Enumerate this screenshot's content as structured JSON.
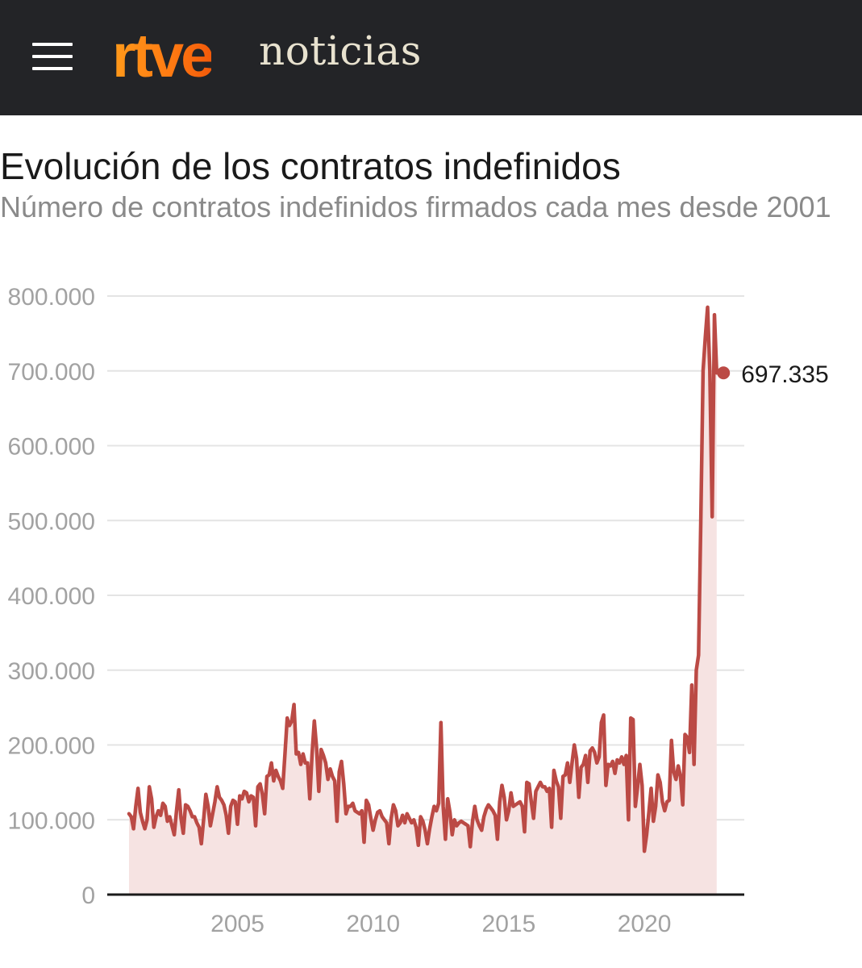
{
  "header": {
    "logo_text": "rtve",
    "section_text": "noticias"
  },
  "chart_data": {
    "type": "area",
    "title": "Evolución de los contratos indefinidos",
    "subtitle": "Número de contratos indefinidos firmados cada mes desde 2001",
    "xlabel": "",
    "ylabel": "",
    "xlim": [
      2001.0,
      2023.0
    ],
    "ylim": [
      0,
      800000
    ],
    "y_ticks": [
      0,
      100000,
      200000,
      300000,
      400000,
      500000,
      600000,
      700000,
      800000
    ],
    "y_tick_labels": [
      "0",
      "100.000",
      "200.000",
      "300.000",
      "400.000",
      "500.000",
      "600.000",
      "700.000",
      "800.000"
    ],
    "x_ticks": [
      2005,
      2010,
      2015,
      2020
    ],
    "x_tick_labels": [
      "2005",
      "2010",
      "2015",
      "2020"
    ],
    "grid": true,
    "series": [
      {
        "name": "Contratos indefinidos",
        "color": "#bb4a45",
        "fill": "#f6e3e2",
        "x_start": 2001.0,
        "x_step": 0.08333,
        "values": [
          108000,
          104000,
          88000,
          118000,
          142000,
          110000,
          98000,
          88000,
          100000,
          144000,
          128000,
          90000,
          104000,
          112000,
          106000,
          122000,
          118000,
          98000,
          104000,
          92000,
          80000,
          112000,
          140000,
          102000,
          82000,
          120000,
          118000,
          112000,
          104000,
          104000,
          96000,
          90000,
          68000,
          100000,
          134000,
          118000,
          92000,
          108000,
          124000,
          144000,
          130000,
          126000,
          120000,
          106000,
          82000,
          118000,
          126000,
          124000,
          94000,
          132000,
          128000,
          138000,
          136000,
          124000,
          132000,
          130000,
          92000,
          144000,
          148000,
          134000,
          108000,
          158000,
          160000,
          176000,
          152000,
          166000,
          158000,
          152000,
          142000,
          188000,
          236000,
          226000,
          232000,
          254000,
          188000,
          190000,
          174000,
          188000,
          176000,
          176000,
          128000,
          188000,
          232000,
          196000,
          138000,
          194000,
          186000,
          176000,
          154000,
          168000,
          158000,
          152000,
          98000,
          164000,
          178000,
          148000,
          108000,
          118000,
          118000,
          122000,
          112000,
          110000,
          108000,
          112000,
          70000,
          126000,
          120000,
          102000,
          86000,
          100000,
          110000,
          112000,
          104000,
          100000,
          96000,
          68000,
          102000,
          120000,
          112000,
          92000,
          96000,
          106000,
          96000,
          108000,
          102000,
          96000,
          100000,
          90000,
          66000,
          104000,
          98000,
          86000,
          68000,
          88000,
          104000,
          118000,
          112000,
          122000,
          230000,
          118000,
          74000,
          128000,
          110000,
          80000,
          100000,
          92000,
          96000,
          98000,
          96000,
          94000,
          92000,
          64000,
          98000,
          118000,
          100000,
          92000,
          86000,
          104000,
          114000,
          120000,
          116000,
          112000,
          106000,
          74000,
          124000,
          146000,
          130000,
          100000,
          112000,
          136000,
          118000,
          120000,
          122000,
          124000,
          118000,
          84000,
          150000,
          148000,
          124000,
          102000,
          138000,
          144000,
          150000,
          144000,
          144000,
          138000,
          142000,
          90000,
          166000,
          152000,
          144000,
          102000,
          158000,
          160000,
          176000,
          150000,
          176000,
          200000,
          182000,
          130000,
          170000,
          174000,
          186000,
          150000,
          192000,
          196000,
          190000,
          176000,
          184000,
          230000,
          240000,
          146000,
          174000,
          172000,
          178000,
          162000,
          180000,
          176000,
          184000,
          174000,
          186000,
          100000,
          236000,
          234000,
          118000,
          144000,
          174000,
          146000,
          58000,
          80000,
          110000,
          142000,
          98000,
          118000,
          160000,
          150000,
          124000,
          112000,
          124000,
          126000,
          206000,
          164000,
          154000,
          172000,
          158000,
          120000,
          214000,
          210000,
          190000,
          280000,
          174000,
          300000,
          320000,
          500000,
          700000,
          745000,
          785000,
          700000,
          505000,
          775000,
          697335
        ]
      }
    ],
    "annotations": [
      {
        "text": "697.335",
        "x": 2022.917,
        "y": 697335
      }
    ]
  }
}
